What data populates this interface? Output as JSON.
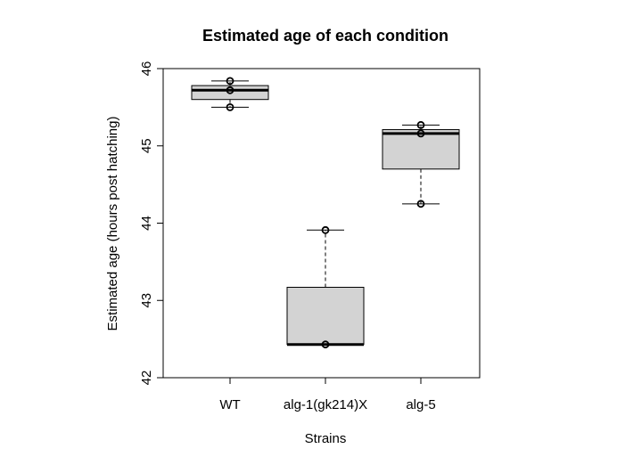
{
  "chart_data": {
    "type": "boxplot",
    "title": "Estimated age of each condition",
    "xlabel": "Strains",
    "ylabel": "Estimated age (hours post hatching)",
    "ylim": [
      42,
      46
    ],
    "yticks": [
      "42",
      "43",
      "44",
      "45",
      "46"
    ],
    "grid": false,
    "categories": [
      "WT",
      "alg-1(gk214)X",
      "alg-5"
    ],
    "boxes": [
      {
        "category": "WT",
        "min": 45.5,
        "q1": 45.6,
        "median": 45.72,
        "q3": 45.78,
        "max": 45.84,
        "points": [
          45.84,
          45.72,
          45.5
        ]
      },
      {
        "category": "alg-1(gk214)X",
        "min": 42.43,
        "q1": 42.43,
        "median": 42.43,
        "q3": 43.17,
        "max": 43.91,
        "points": [
          42.43,
          43.91
        ]
      },
      {
        "category": "alg-5",
        "min": 44.25,
        "q1": 44.7,
        "median": 45.16,
        "q3": 45.21,
        "max": 45.27,
        "points": [
          45.27,
          45.16,
          44.25
        ]
      }
    ],
    "colors": {
      "box_fill": "#d3d3d3",
      "stroke": "#000000"
    }
  }
}
